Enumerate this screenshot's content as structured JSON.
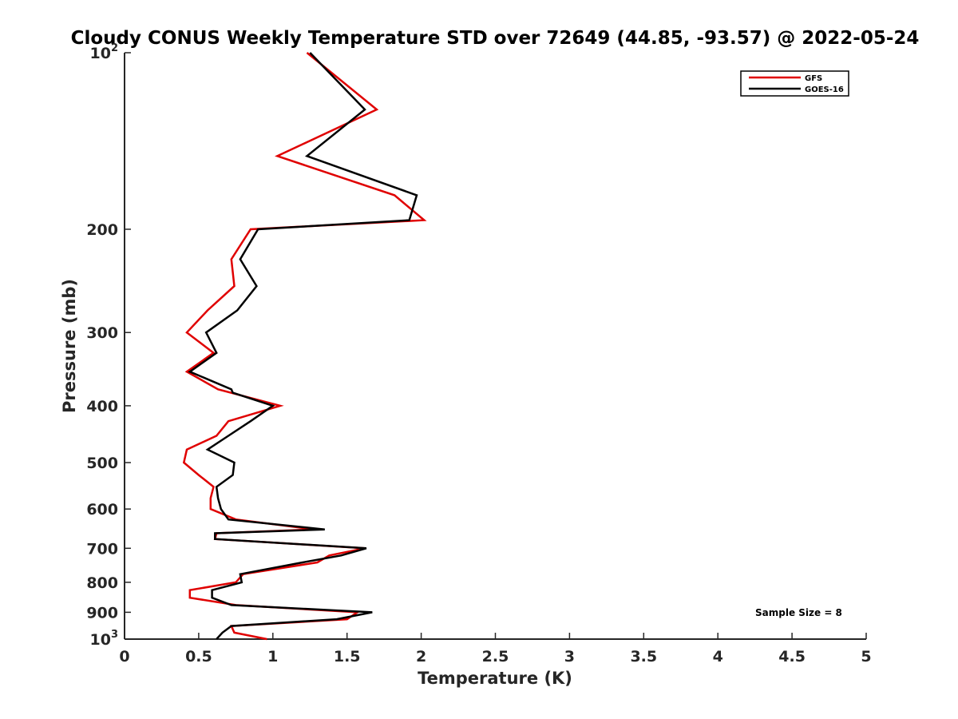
{
  "chart_data": {
    "type": "line",
    "title": "Cloudy CONUS Weekly Temperature STD over 72649 (44.85, -93.57) @ 2022-05-24",
    "xlabel": "Temperature (K)",
    "ylabel": "Pressure (mb)",
    "xlim": [
      0,
      5
    ],
    "ylim": [
      100,
      1000
    ],
    "y_scale": "log",
    "y_reversed": true,
    "grid": false,
    "legend_position": "top-right",
    "x_ticks": [
      0,
      0.5,
      1,
      1.5,
      2,
      2.5,
      3,
      3.5,
      4,
      4.5,
      5
    ],
    "x_tick_labels": [
      "0",
      "0.5",
      "1",
      "1.5",
      "2",
      "2.5",
      "3",
      "3.5",
      "4",
      "4.5",
      "5"
    ],
    "y_ticks": [
      100,
      200,
      300,
      400,
      500,
      600,
      700,
      800,
      900,
      1000
    ],
    "y_tick_labels": [
      {
        "base": "10",
        "exp": "2"
      },
      {
        "base": "200",
        "exp": ""
      },
      {
        "base": "300",
        "exp": ""
      },
      {
        "base": "400",
        "exp": ""
      },
      {
        "base": "500",
        "exp": ""
      },
      {
        "base": "600",
        "exp": ""
      },
      {
        "base": "700",
        "exp": ""
      },
      {
        "base": "800",
        "exp": ""
      },
      {
        "base": "900",
        "exp": ""
      },
      {
        "base": "10",
        "exp": "3"
      }
    ],
    "series": [
      {
        "name": "GFS",
        "color": "#e00000",
        "points": [
          [
            1.23,
            100
          ],
          [
            1.7,
            125
          ],
          [
            1.03,
            150
          ],
          [
            1.82,
            175
          ],
          [
            2.02,
            193
          ],
          [
            0.85,
            200
          ],
          [
            0.72,
            225
          ],
          [
            0.74,
            250
          ],
          [
            0.56,
            275
          ],
          [
            0.42,
            300
          ],
          [
            0.6,
            325
          ],
          [
            0.42,
            350
          ],
          [
            0.63,
            375
          ],
          [
            1.05,
            400
          ],
          [
            0.7,
            425
          ],
          [
            0.62,
            450
          ],
          [
            0.42,
            475
          ],
          [
            0.4,
            500
          ],
          [
            0.5,
            525
          ],
          [
            0.6,
            550
          ],
          [
            0.58,
            575
          ],
          [
            0.58,
            600
          ],
          [
            0.75,
            625
          ],
          [
            1.28,
            650
          ],
          [
            0.62,
            660
          ],
          [
            0.61,
            675
          ],
          [
            1.62,
            700
          ],
          [
            1.38,
            720
          ],
          [
            1.3,
            740
          ],
          [
            0.8,
            775
          ],
          [
            0.75,
            800
          ],
          [
            0.44,
            825
          ],
          [
            0.44,
            850
          ],
          [
            0.75,
            875
          ],
          [
            1.57,
            900
          ],
          [
            1.5,
            925
          ],
          [
            0.72,
            950
          ],
          [
            0.74,
            975
          ],
          [
            0.96,
            1000
          ]
        ]
      },
      {
        "name": "GOES-16",
        "color": "#000000",
        "points": [
          [
            1.25,
            100
          ],
          [
            1.62,
            125
          ],
          [
            1.23,
            150
          ],
          [
            1.97,
            175
          ],
          [
            1.92,
            193
          ],
          [
            0.9,
            200
          ],
          [
            0.78,
            225
          ],
          [
            0.89,
            250
          ],
          [
            0.76,
            275
          ],
          [
            0.55,
            300
          ],
          [
            0.62,
            325
          ],
          [
            0.44,
            350
          ],
          [
            0.72,
            375
          ],
          [
            0.73,
            380
          ],
          [
            1.0,
            400
          ],
          [
            0.85,
            425
          ],
          [
            0.7,
            450
          ],
          [
            0.56,
            475
          ],
          [
            0.74,
            500
          ],
          [
            0.73,
            525
          ],
          [
            0.62,
            550
          ],
          [
            0.63,
            575
          ],
          [
            0.65,
            600
          ],
          [
            0.7,
            625
          ],
          [
            1.35,
            650
          ],
          [
            0.61,
            660
          ],
          [
            0.61,
            675
          ],
          [
            1.63,
            700
          ],
          [
            1.46,
            720
          ],
          [
            1.2,
            740
          ],
          [
            0.78,
            775
          ],
          [
            0.79,
            800
          ],
          [
            0.59,
            825
          ],
          [
            0.59,
            850
          ],
          [
            0.72,
            875
          ],
          [
            1.67,
            900
          ],
          [
            1.43,
            925
          ],
          [
            0.72,
            950
          ],
          [
            0.66,
            975
          ],
          [
            0.62,
            1000
          ]
        ]
      }
    ],
    "annotations": [
      "Sample Size = 8"
    ]
  }
}
